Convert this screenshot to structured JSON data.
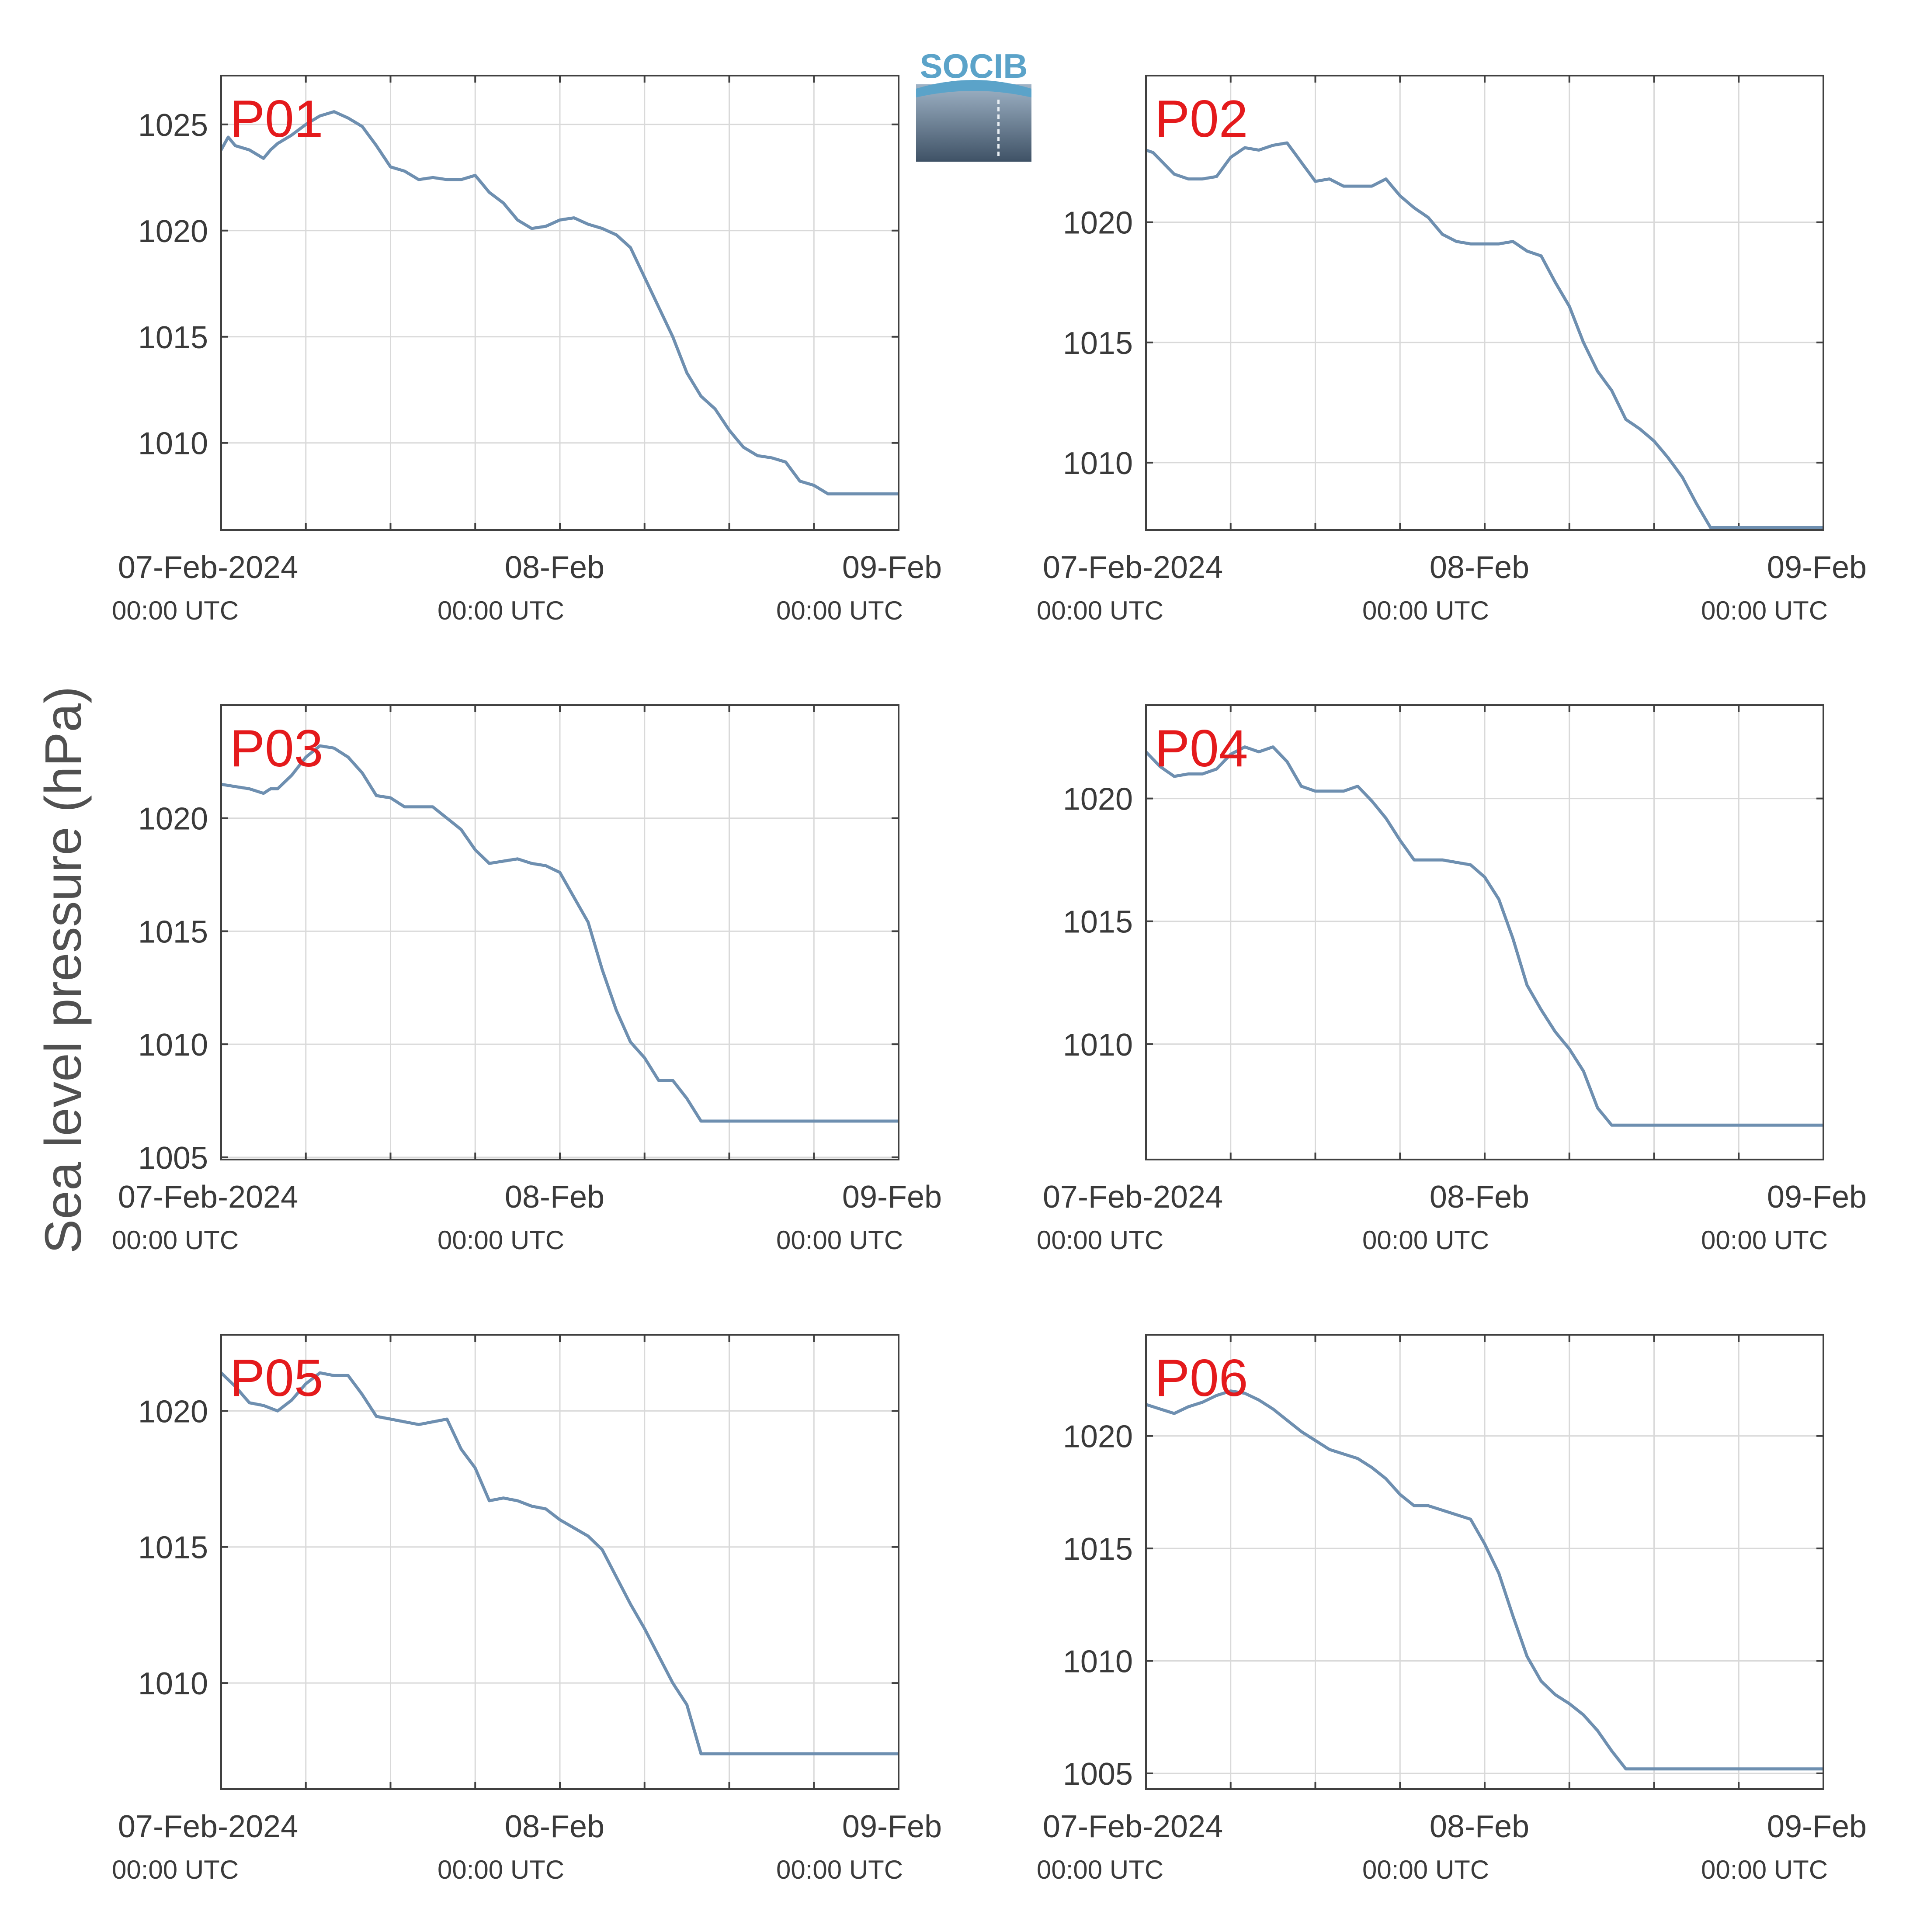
{
  "figure": {
    "ylabel": "Sea level pressure (hPa)",
    "line_color": "#6e8fb0",
    "label_color": "#e41a1c",
    "logo": {
      "text": "SOCIB",
      "text_color": "#5ba3c9"
    }
  },
  "chart_data": [
    {
      "type": "line",
      "label": "P01",
      "xlim": [
        0,
        48
      ],
      "ylim": [
        1005.9,
        1027.3
      ],
      "yticks": [
        1010,
        1015,
        1020,
        1025
      ],
      "xticks": [
        0,
        24,
        48
      ],
      "xticklabels": [
        "07-Feb-2024",
        "08-Feb",
        "09-Feb"
      ],
      "xticksub": [
        "00:00 UTC",
        "00:00 UTC",
        "00:00 UTC"
      ],
      "minor_xticks": [
        6,
        12,
        18,
        30,
        36,
        42
      ],
      "x": [
        0,
        0.5,
        1,
        2,
        3,
        3.5,
        4,
        5,
        6,
        7,
        8,
        9,
        9.5,
        10,
        11,
        12,
        13,
        14,
        15,
        16,
        17,
        18,
        19,
        20,
        21,
        22,
        23,
        24,
        25,
        26,
        27,
        28,
        29,
        30,
        31,
        32,
        33,
        34,
        35,
        36,
        37,
        38,
        39,
        40,
        41,
        42,
        43,
        44,
        45,
        46,
        47,
        48
      ],
      "y": [
        1023.8,
        1024.4,
        1024.0,
        1023.8,
        1023.4,
        1023.8,
        1024.1,
        1024.5,
        1025.0,
        1025.4,
        1025.6,
        1025.3,
        1025.1,
        1024.9,
        1024.0,
        1023.0,
        1022.8,
        1022.4,
        1022.5,
        1022.4,
        1022.4,
        1022.6,
        1021.8,
        1021.3,
        1020.5,
        1020.1,
        1020.2,
        1020.5,
        1020.6,
        1020.3,
        1020.1,
        1019.8,
        1019.2,
        1017.8,
        1016.4,
        1015.0,
        1013.3,
        1012.2,
        1011.6,
        1010.6,
        1009.8,
        1009.4,
        1009.3,
        1009.1,
        1008.2,
        1008.0,
        1007.6,
        1007.6,
        1007.6,
        1007.6,
        1007.6,
        1007.6
      ]
    },
    {
      "type": "line",
      "label": "P02",
      "xlim": [
        0,
        48
      ],
      "ylim": [
        1007.2,
        1026.1
      ],
      "yticks": [
        1010,
        1015,
        1020
      ],
      "xticks": [
        0,
        24,
        48
      ],
      "xticklabels": [
        "07-Feb-2024",
        "08-Feb",
        "09-Feb"
      ],
      "xticksub": [
        "00:00 UTC",
        "00:00 UTC",
        "00:00 UTC"
      ],
      "minor_xticks": [
        6,
        12,
        18,
        30,
        36,
        42
      ],
      "x": [
        0,
        0.5,
        1,
        2,
        3,
        4,
        5,
        6,
        7,
        8,
        9,
        10,
        11,
        12,
        13,
        14,
        15,
        16,
        17,
        18,
        19,
        20,
        21,
        22,
        23,
        24,
        25,
        26,
        27,
        28,
        29,
        30,
        31,
        32,
        33,
        34,
        35,
        36,
        37,
        38,
        39,
        40,
        41,
        42,
        43,
        44,
        45,
        46,
        47,
        48
      ],
      "y": [
        1023.0,
        1022.9,
        1022.6,
        1022.0,
        1021.8,
        1021.8,
        1021.9,
        1022.7,
        1023.1,
        1023.0,
        1023.2,
        1023.3,
        1022.5,
        1021.7,
        1021.8,
        1021.5,
        1021.5,
        1021.5,
        1021.8,
        1021.1,
        1020.6,
        1020.2,
        1019.5,
        1019.2,
        1019.1,
        1019.1,
        1019.1,
        1019.2,
        1018.8,
        1018.6,
        1017.5,
        1016.5,
        1015.0,
        1013.8,
        1013.0,
        1011.8,
        1011.4,
        1010.9,
        1010.2,
        1009.4,
        1008.3,
        1007.3,
        1007.3,
        1007.3,
        1007.3,
        1007.3,
        1007.3,
        1007.3,
        1007.3,
        1007.3
      ]
    },
    {
      "type": "line",
      "label": "P03",
      "xlim": [
        0,
        48
      ],
      "ylim": [
        1004.9,
        1025.0
      ],
      "yticks": [
        1005,
        1010,
        1015,
        1020
      ],
      "xticks": [
        0,
        24,
        48
      ],
      "xticklabels": [
        "07-Feb-2024",
        "08-Feb",
        "09-Feb"
      ],
      "xticksub": [
        "00:00 UTC",
        "00:00 UTC",
        "00:00 UTC"
      ],
      "minor_xticks": [
        6,
        12,
        18,
        30,
        36,
        42
      ],
      "x": [
        0,
        1,
        2,
        3,
        3.5,
        4,
        5,
        6,
        7,
        8,
        9,
        10,
        11,
        12,
        13,
        14,
        15,
        16,
        17,
        18,
        19,
        20,
        21,
        22,
        23,
        24,
        25,
        26,
        27,
        28,
        29,
        30,
        31,
        32,
        33,
        34,
        35,
        36,
        37,
        38,
        39,
        40,
        41,
        42,
        43,
        44,
        45,
        46,
        47,
        48
      ],
      "y": [
        1021.5,
        1021.4,
        1021.3,
        1021.1,
        1021.3,
        1021.3,
        1021.9,
        1022.7,
        1023.2,
        1023.1,
        1022.7,
        1022.0,
        1021.0,
        1020.9,
        1020.5,
        1020.5,
        1020.5,
        1020.0,
        1019.5,
        1018.6,
        1018.0,
        1018.1,
        1018.2,
        1018.0,
        1017.9,
        1017.6,
        1016.5,
        1015.4,
        1013.3,
        1011.5,
        1010.1,
        1009.4,
        1008.4,
        1008.4,
        1007.6,
        1006.6,
        1006.6,
        1006.6,
        1006.6,
        1006.6,
        1006.6,
        1006.6,
        1006.6,
        1006.6,
        1006.6,
        1006.6,
        1006.6,
        1006.6,
        1006.6,
        1006.6
      ]
    },
    {
      "type": "line",
      "label": "P04",
      "xlim": [
        0,
        48
      ],
      "ylim": [
        1005.3,
        1023.8
      ],
      "yticks": [
        1010,
        1015,
        1020
      ],
      "xticks": [
        0,
        24,
        48
      ],
      "xticklabels": [
        "07-Feb-2024",
        "08-Feb",
        "09-Feb"
      ],
      "xticksub": [
        "00:00 UTC",
        "00:00 UTC",
        "00:00 UTC"
      ],
      "minor_xticks": [
        6,
        12,
        18,
        30,
        36,
        42
      ],
      "x": [
        0,
        1,
        2,
        3,
        4,
        5,
        6,
        7,
        8,
        9,
        10,
        11,
        12,
        13,
        14,
        15,
        16,
        17,
        18,
        19,
        20,
        21,
        22,
        23,
        24,
        25,
        26,
        27,
        28,
        29,
        30,
        31,
        32,
        33,
        34,
        35,
        36,
        37,
        38,
        39,
        40,
        41,
        42,
        43,
        44,
        45,
        46,
        47,
        48
      ],
      "y": [
        1021.9,
        1021.3,
        1020.9,
        1021.0,
        1021.0,
        1021.2,
        1021.8,
        1022.1,
        1021.9,
        1022.1,
        1021.5,
        1020.5,
        1020.3,
        1020.3,
        1020.3,
        1020.5,
        1019.9,
        1019.2,
        1018.3,
        1017.5,
        1017.5,
        1017.5,
        1017.4,
        1017.3,
        1016.8,
        1015.9,
        1014.3,
        1012.4,
        1011.4,
        1010.5,
        1009.8,
        1008.9,
        1007.4,
        1006.7,
        1006.7,
        1006.7,
        1006.7,
        1006.7,
        1006.7,
        1006.7,
        1006.7,
        1006.7,
        1006.7,
        1006.7,
        1006.7,
        1006.7,
        1006.7,
        1006.7,
        1006.7
      ]
    },
    {
      "type": "line",
      "label": "P05",
      "xlim": [
        0,
        48
      ],
      "ylim": [
        1006.1,
        1022.8
      ],
      "yticks": [
        1010,
        1015,
        1020
      ],
      "xticks": [
        0,
        24,
        48
      ],
      "xticklabels": [
        "07-Feb-2024",
        "08-Feb",
        "09-Feb"
      ],
      "xticksub": [
        "00:00 UTC",
        "00:00 UTC",
        "00:00 UTC"
      ],
      "minor_xticks": [
        6,
        12,
        18,
        30,
        36,
        42
      ],
      "x": [
        0,
        1,
        2,
        3,
        4,
        5,
        6,
        7,
        8,
        9,
        10,
        11,
        12,
        13,
        14,
        15,
        16,
        17,
        18,
        19,
        20,
        21,
        22,
        23,
        24,
        25,
        26,
        27,
        28,
        29,
        30,
        31,
        32,
        33,
        34,
        35,
        36,
        37,
        38,
        39,
        40,
        41,
        42,
        43,
        44,
        45,
        46,
        47,
        48
      ],
      "y": [
        1021.4,
        1020.9,
        1020.3,
        1020.2,
        1020.0,
        1020.4,
        1021.0,
        1021.4,
        1021.3,
        1021.3,
        1020.6,
        1019.8,
        1019.7,
        1019.6,
        1019.5,
        1019.6,
        1019.7,
        1018.6,
        1017.9,
        1016.7,
        1016.8,
        1016.7,
        1016.5,
        1016.4,
        1016.0,
        1015.7,
        1015.4,
        1014.9,
        1013.9,
        1012.9,
        1012.0,
        1011.0,
        1010.0,
        1009.2,
        1007.4,
        1007.4,
        1007.4,
        1007.4,
        1007.4,
        1007.4,
        1007.4,
        1007.4,
        1007.4,
        1007.4,
        1007.4,
        1007.4,
        1007.4,
        1007.4,
        1007.4
      ]
    },
    {
      "type": "line",
      "label": "P06",
      "xlim": [
        0,
        48
      ],
      "ylim": [
        1004.3,
        1024.5
      ],
      "yticks": [
        1005,
        1010,
        1015,
        1020
      ],
      "xticks": [
        0,
        24,
        48
      ],
      "xticklabels": [
        "07-Feb-2024",
        "08-Feb",
        "09-Feb"
      ],
      "xticksub": [
        "00:00 UTC",
        "00:00 UTC",
        "00:00 UTC"
      ],
      "minor_xticks": [
        6,
        12,
        18,
        30,
        36,
        42
      ],
      "x": [
        0,
        1,
        2,
        3,
        4,
        5,
        6,
        7,
        8,
        9,
        10,
        11,
        12,
        13,
        14,
        15,
        16,
        17,
        18,
        19,
        20,
        21,
        22,
        23,
        24,
        25,
        26,
        27,
        28,
        29,
        30,
        31,
        32,
        33,
        34,
        35,
        36,
        37,
        38,
        39,
        40,
        41,
        42,
        43,
        44,
        45,
        46,
        47,
        48
      ],
      "y": [
        1021.4,
        1021.2,
        1021.0,
        1021.3,
        1021.5,
        1021.8,
        1022.0,
        1021.9,
        1021.6,
        1021.2,
        1020.7,
        1020.2,
        1019.8,
        1019.4,
        1019.2,
        1019.0,
        1018.6,
        1018.1,
        1017.4,
        1016.9,
        1016.9,
        1016.7,
        1016.5,
        1016.3,
        1015.2,
        1013.9,
        1012.0,
        1010.2,
        1009.1,
        1008.5,
        1008.1,
        1007.6,
        1006.9,
        1006.0,
        1005.2,
        1005.2,
        1005.2,
        1005.2,
        1005.2,
        1005.2,
        1005.2,
        1005.2,
        1005.2,
        1005.2,
        1005.2,
        1005.2,
        1005.2,
        1005.2,
        1005.2
      ]
    }
  ]
}
